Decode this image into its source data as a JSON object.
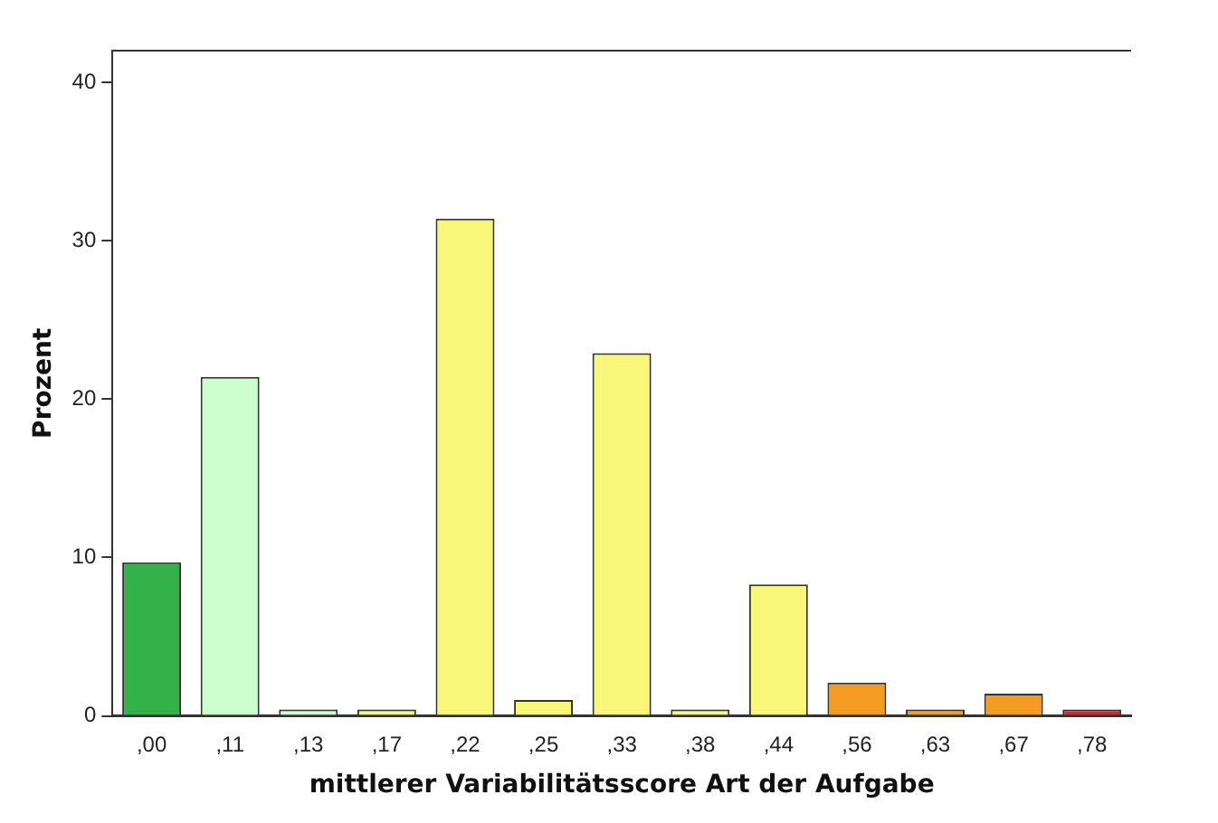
{
  "chart_data": {
    "type": "bar",
    "xlabel": "mittlerer Variabilitätsscore Art der Aufgabe",
    "ylabel": "Prozent",
    "categories": [
      ",00",
      ",11",
      ",13",
      ",17",
      ",22",
      ",25",
      ",33",
      ",38",
      ",44",
      ",56",
      ",63",
      ",67",
      ",78"
    ],
    "values": [
      9.7,
      21.4,
      0.4,
      0.4,
      31.4,
      1.0,
      22.9,
      0.4,
      8.3,
      2.1,
      0.4,
      1.4,
      0.4
    ],
    "colors": [
      "#33b249",
      "#ccfdcc",
      "#ccfdcc",
      "#f8f77a",
      "#f8f77a",
      "#f8f77a",
      "#f8f77a",
      "#f8f77a",
      "#f8f77a",
      "#f39c21",
      "#f39c21",
      "#f39c21",
      "#e1222f"
    ],
    "ylim": [
      0,
      42
    ],
    "yticks": [
      0,
      10,
      20,
      30,
      40
    ],
    "grid": false,
    "legend": false
  }
}
